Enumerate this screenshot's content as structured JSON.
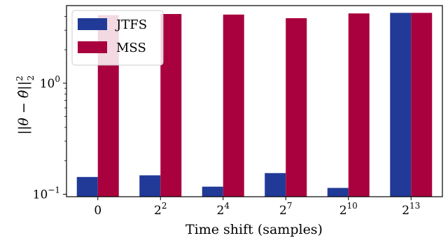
{
  "chart_data": {
    "type": "bar",
    "categories": [
      "0",
      "2^2",
      "2^4",
      "2^7",
      "2^10",
      "2^13"
    ],
    "category_labels": [
      {
        "base": "0",
        "exp": ""
      },
      {
        "base": "2",
        "exp": "2"
      },
      {
        "base": "2",
        "exp": "4"
      },
      {
        "base": "2",
        "exp": "7"
      },
      {
        "base": "2",
        "exp": "10"
      },
      {
        "base": "2",
        "exp": "13"
      }
    ],
    "series": [
      {
        "name": "JTFS",
        "color": "#213a97",
        "values": [
          0.143,
          0.148,
          0.117,
          0.155,
          0.114,
          4.3
        ]
      },
      {
        "name": "MSS",
        "color": "#a9003e",
        "values": [
          4.1,
          4.2,
          4.15,
          3.85,
          4.25,
          4.3
        ]
      }
    ],
    "xlabel": "Time shift (samples)",
    "ylabel": "||θ − θ̂||₂²",
    "yscale": "log",
    "ylim": [
      0.095,
      5.0
    ],
    "yticks": [
      {
        "value": 1,
        "base": "10",
        "exp": "0"
      },
      {
        "value": 0.1,
        "base": "10",
        "exp": "−1"
      }
    ],
    "grid": false,
    "legend": "top-left"
  }
}
